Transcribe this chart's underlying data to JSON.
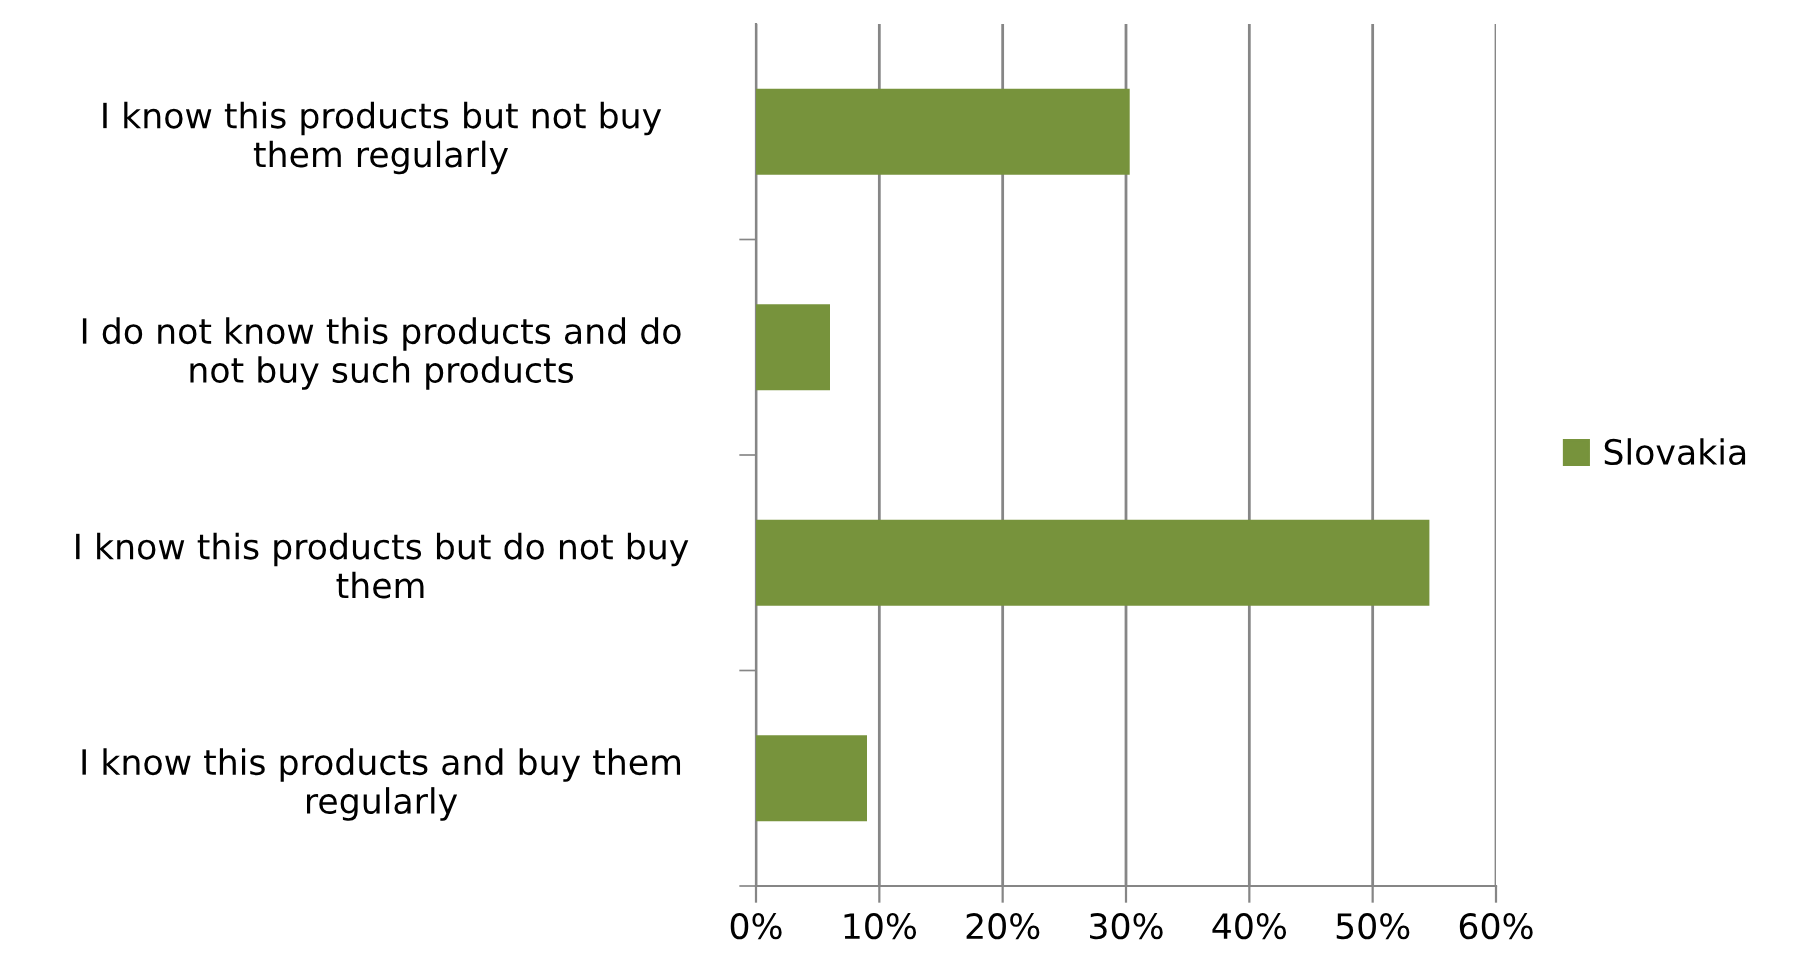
{
  "chart_data": {
    "type": "bar",
    "orientation": "horizontal",
    "categories": [
      "I know this products but not buy\nthem regularly",
      "I do not know this products and do\nnot buy such products",
      "I know this products but do not buy\nthem",
      "I know this products and buy them\nregularly"
    ],
    "series": [
      {
        "name": "Slovakia",
        "color": "#77933c",
        "values": [
          30.3,
          6.0,
          54.6,
          9.0
        ]
      }
    ],
    "xlim": [
      0,
      60
    ],
    "xticks": [
      {
        "value": 0,
        "label": "0%"
      },
      {
        "value": 10,
        "label": "10%"
      },
      {
        "value": 20,
        "label": "20%"
      },
      {
        "value": 30,
        "label": "30%"
      },
      {
        "value": 40,
        "label": "40%"
      },
      {
        "value": 50,
        "label": "50%"
      },
      {
        "value": 60,
        "label": "60%"
      }
    ],
    "grid": "x",
    "legend": "right"
  }
}
